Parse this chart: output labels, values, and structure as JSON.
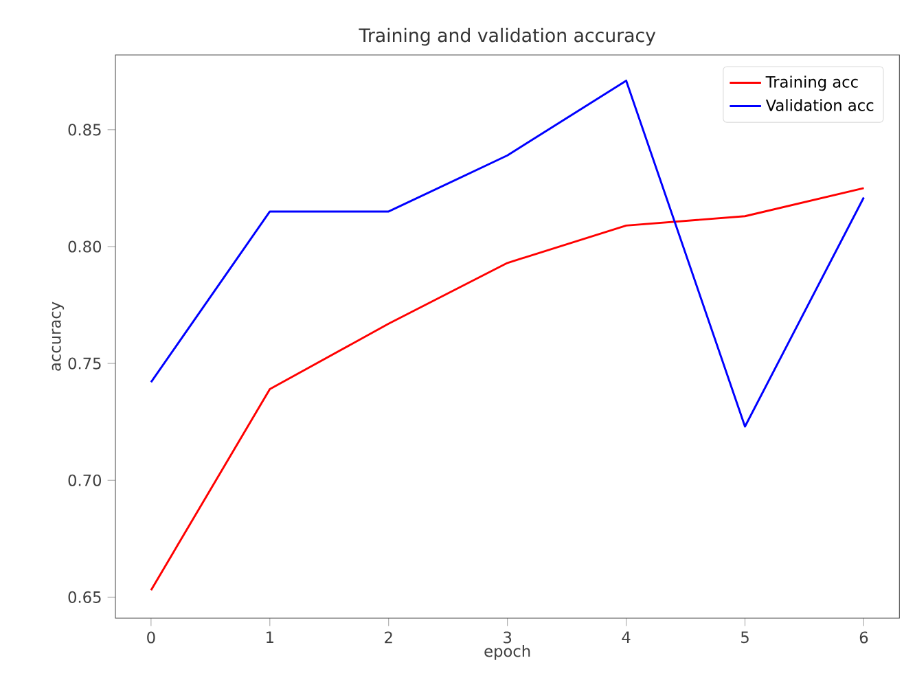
{
  "chart_data": {
    "type": "line",
    "title": "Training and validation accuracy",
    "xlabel": "epoch",
    "ylabel": "accuracy",
    "x": [
      0,
      1,
      2,
      3,
      4,
      5,
      6
    ],
    "series": [
      {
        "name": "Training acc",
        "color": "#ff0000",
        "values": [
          0.653,
          0.739,
          0.767,
          0.793,
          0.809,
          0.813,
          0.825
        ]
      },
      {
        "name": "Validation acc",
        "color": "#0000ff",
        "values": [
          0.742,
          0.815,
          0.815,
          0.839,
          0.871,
          0.723,
          0.821
        ]
      }
    ],
    "xlim": [
      -0.3,
      6.3
    ],
    "ylim": [
      0.641,
      0.882
    ],
    "xticks": [
      0,
      1,
      2,
      3,
      4,
      5,
      6
    ],
    "yticks": [
      {
        "value": 0.65,
        "label": "0.65"
      },
      {
        "value": 0.7,
        "label": "0.70"
      },
      {
        "value": 0.75,
        "label": "0.75"
      },
      {
        "value": 0.8,
        "label": "0.80"
      },
      {
        "value": 0.85,
        "label": "0.85"
      }
    ],
    "legend": "top right",
    "grid": false,
    "marker": "none",
    "line_style": "solid"
  }
}
